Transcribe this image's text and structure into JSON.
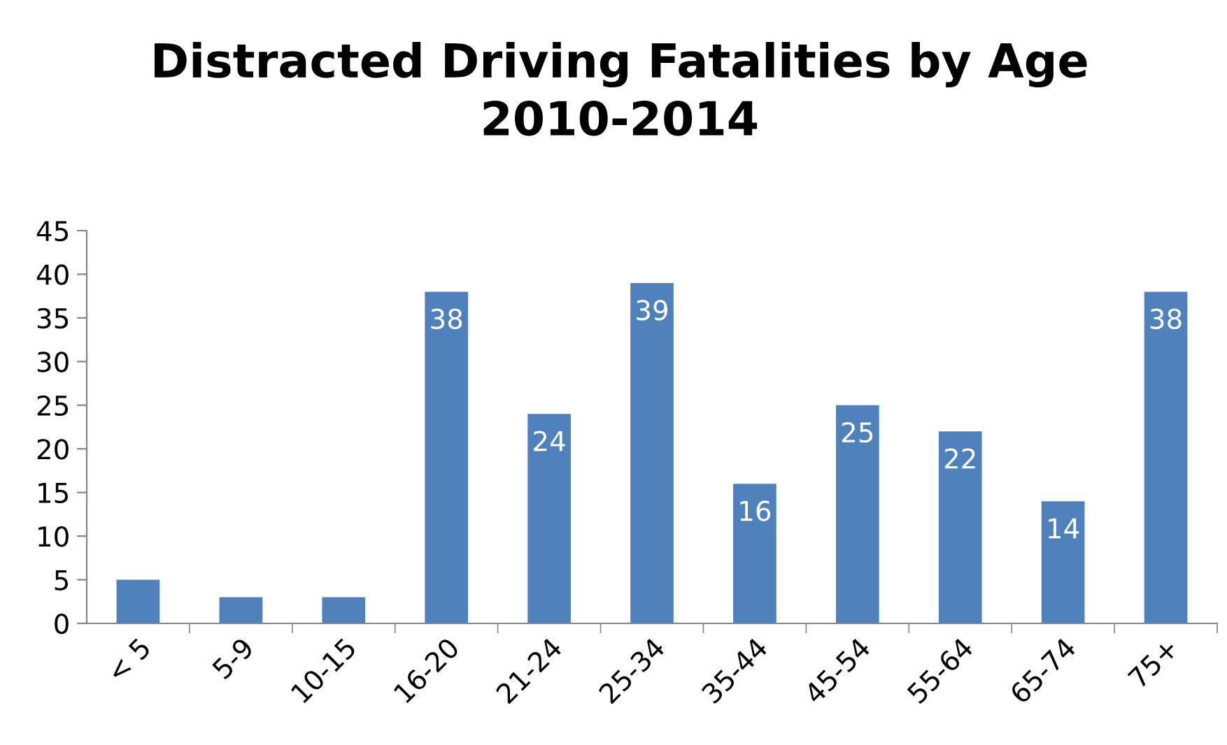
{
  "chart_data": {
    "type": "bar",
    "title": "Distracted Driving Fatalities by Age\n2010-2014",
    "categories": [
      "< 5",
      "5-9",
      "10-15",
      "16-20",
      "21-24",
      "25-34",
      "35-44",
      "45-54",
      "55-64",
      "65-74",
      "75+"
    ],
    "values": [
      5,
      3,
      3,
      38,
      24,
      39,
      16,
      25,
      22,
      14,
      38
    ],
    "value_labels": [
      null,
      null,
      null,
      "38",
      "24",
      "39",
      "16",
      "25",
      "22",
      "14",
      "38"
    ],
    "color": "#4f81bd",
    "ylim": [
      0,
      45
    ],
    "yticks": [
      0,
      5,
      10,
      15,
      20,
      25,
      30,
      35,
      40,
      45
    ],
    "grid": false,
    "legend": false
  }
}
